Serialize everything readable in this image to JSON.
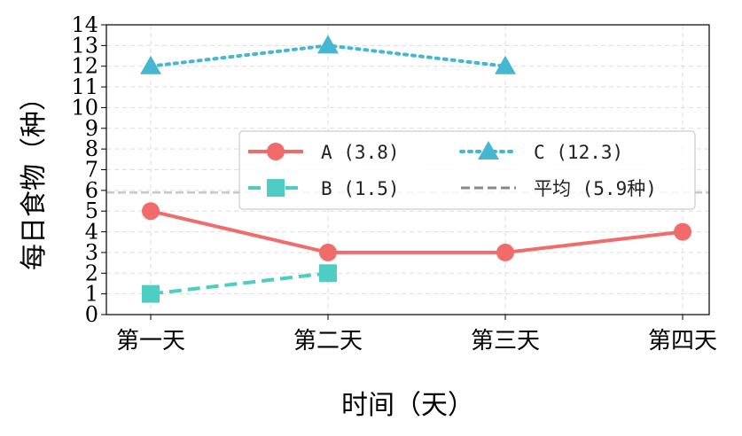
{
  "chart_data": {
    "type": "line",
    "title": "",
    "xlabel": "时间（天）",
    "ylabel": "每日食物（种）",
    "categories": [
      "第一天",
      "第二天",
      "第三天",
      "第四天"
    ],
    "ylim": [
      0,
      14
    ],
    "yticks": [
      "0",
      "1",
      "2",
      "3",
      "4",
      "5",
      "6",
      "7",
      "8",
      "9",
      "10",
      "11",
      "12",
      "13",
      "14"
    ],
    "grid": true,
    "legend_position": "center-right",
    "series": [
      {
        "name": "A (3.8)",
        "values": [
          5,
          3,
          3,
          4
        ],
        "color": "#f26b6b",
        "marker": "circle",
        "line": "solid"
      },
      {
        "name": "B (1.5)",
        "values": [
          1,
          2,
          null,
          null
        ],
        "color": "#4ecdc4",
        "marker": "square",
        "line": "dashed"
      },
      {
        "name": "C (12.3)",
        "values": [
          12,
          13,
          12,
          null
        ],
        "color": "#45b7d1",
        "marker": "triangle",
        "line": "dotted"
      }
    ],
    "reference_line": {
      "name": "平均 (5.9种)",
      "value": 5.9,
      "color": "#999999"
    }
  }
}
